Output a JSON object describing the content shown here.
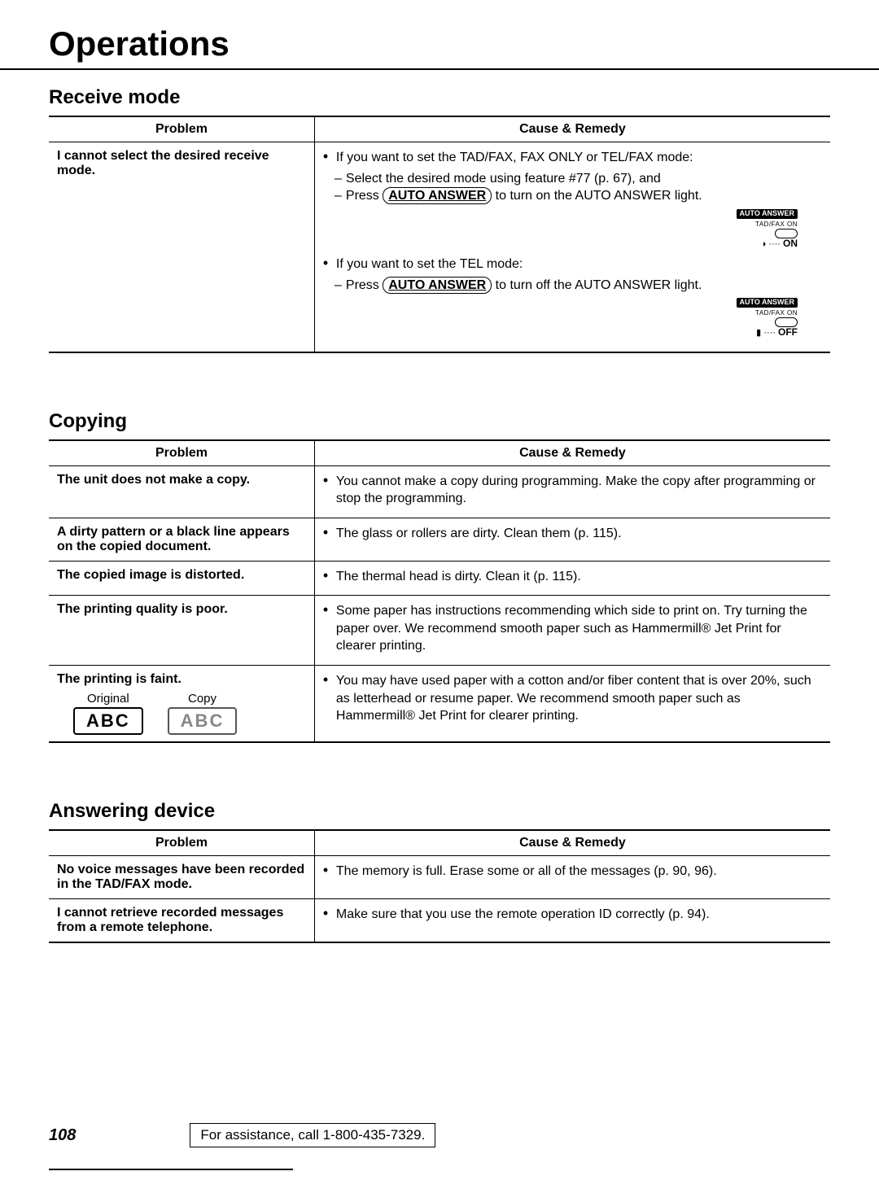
{
  "page": {
    "title": "Operations",
    "number": "108",
    "assistance": "For assistance, call 1-800-435-7329."
  },
  "headers": {
    "problem": "Problem",
    "remedy": "Cause & Remedy"
  },
  "receive": {
    "heading": "Receive mode",
    "rows": [
      {
        "problem": "I cannot select the desired receive mode.",
        "bullet1_pre": "If you want to set the TAD/FAX, FAX ONLY or TEL/FAX mode:",
        "sub1": "Select the desired mode using feature #77 (p. 67), and",
        "sub2_pre": "Press ",
        "sub2_btn": "AUTO ANSWER",
        "sub2_post": " to turn on the AUTO ANSWER light.",
        "indicator1": {
          "pill": "AUTO ANSWER",
          "sub": "TAD/FAX ON",
          "dots": "····",
          "state": "ON",
          "stateGlyph": "◑"
        },
        "bullet2_pre": "If you want to set the TEL mode:",
        "sub3_pre": "Press ",
        "sub3_btn": "AUTO ANSWER",
        "sub3_post": " to turn off the AUTO ANSWER light.",
        "indicator2": {
          "pill": "AUTO ANSWER",
          "sub": "TAD/FAX ON",
          "dots": "····",
          "state": "OFF",
          "stateGlyph": "▮"
        }
      }
    ]
  },
  "copying": {
    "heading": "Copying",
    "rows": [
      {
        "problem": "The unit does not make a copy.",
        "remedy": "You cannot make a copy during programming. Make the copy after programming or stop the programming."
      },
      {
        "problem": "A dirty pattern or a black line appears on the copied document.",
        "remedy": "The glass or rollers are dirty. Clean them (p. 115)."
      },
      {
        "problem": "The copied image is distorted.",
        "remedy": "The thermal head is dirty. Clean it (p. 115)."
      },
      {
        "problem": "The printing quality is poor.",
        "remedy": "Some paper has instructions recommending which side to print on. Try turning the paper over. We recommend smooth paper such as Hammermill® Jet Print for clearer printing."
      },
      {
        "problem": "The printing is faint.",
        "orig_label": "Original",
        "copy_label": "Copy",
        "abc": "ABC",
        "remedy": "You may have used paper with a cotton and/or fiber content that is over 20%, such as letterhead or resume paper. We recommend smooth paper such as Hammermill® Jet Print for clearer printing."
      }
    ]
  },
  "answering": {
    "heading": "Answering device",
    "rows": [
      {
        "problem": "No voice messages have been recorded in the TAD/FAX mode.",
        "remedy": "The memory is full. Erase some or all of the messages (p. 90, 96)."
      },
      {
        "problem": "I cannot retrieve recorded messages from a remote telephone.",
        "remedy": "Make sure that you use the remote operation ID correctly (p. 94)."
      }
    ]
  }
}
